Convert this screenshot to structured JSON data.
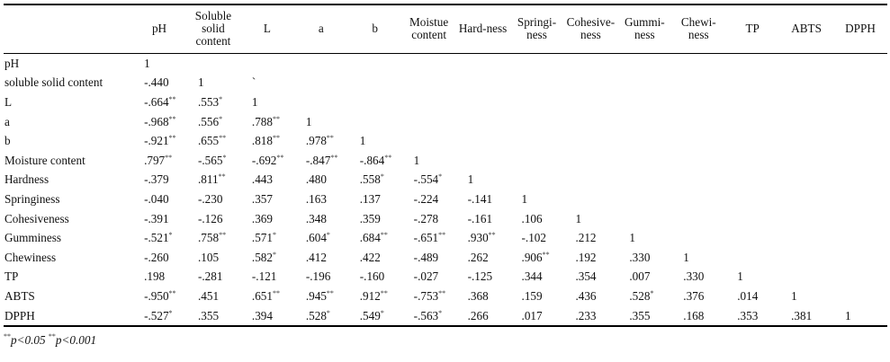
{
  "table": {
    "columns": [
      "",
      "pH",
      "Soluble solid content",
      "L",
      "a",
      "b",
      "Moistue content",
      "Hard-ness",
      "Springi-ness",
      "Cohesive-ness",
      "Gummi-ness",
      "Chewi-ness",
      "TP",
      "ABTS",
      "DPPH"
    ],
    "rows": [
      {
        "label": "pH",
        "cells": [
          "1"
        ]
      },
      {
        "label": "soluble solid content",
        "cells": [
          "-.440",
          "1",
          "`"
        ]
      },
      {
        "label": "L",
        "cells": [
          "-.664**",
          ".553*",
          "1"
        ]
      },
      {
        "label": "a",
        "cells": [
          "-.968**",
          ".556*",
          ".788**",
          "1"
        ]
      },
      {
        "label": "b",
        "cells": [
          "-.921**",
          ".655**",
          ".818**",
          ".978**",
          "1"
        ]
      },
      {
        "label": "Moisture content",
        "cells": [
          ".797**",
          "-.565*",
          "-.692**",
          "-.847**",
          "-.864**",
          "1"
        ]
      },
      {
        "label": "Hardness",
        "cells": [
          "-.379",
          ".811**",
          ".443",
          ".480",
          ".558*",
          "-.554*",
          "1"
        ]
      },
      {
        "label": "Springiness",
        "cells": [
          "-.040",
          "-.230",
          ".357",
          ".163",
          ".137",
          "-.224",
          "-.141",
          "1"
        ]
      },
      {
        "label": "Cohesiveness",
        "cells": [
          "-.391",
          "-.126",
          ".369",
          ".348",
          ".359",
          "-.278",
          "-.161",
          ".106",
          "1"
        ]
      },
      {
        "label": "Gumminess",
        "cells": [
          "-.521*",
          ".758**",
          ".571*",
          ".604*",
          ".684**",
          "-.651**",
          ".930**",
          "-.102",
          ".212",
          "1"
        ]
      },
      {
        "label": "Chewiness",
        "cells": [
          "-.260",
          ".105",
          ".582*",
          ".412",
          ".422",
          "-.489",
          ".262",
          ".906**",
          ".192",
          ".330",
          "1"
        ]
      },
      {
        "label": "TP",
        "cells": [
          ".198",
          "-.281",
          "-.121",
          "-.196",
          "-.160",
          "-.027",
          "-.125",
          ".344",
          ".354",
          ".007",
          ".330",
          "1"
        ]
      },
      {
        "label": "ABTS",
        "cells": [
          "-.950**",
          ".451",
          ".651**",
          ".945**",
          ".912**",
          "-.753**",
          ".368",
          ".159",
          ".436",
          ".528*",
          ".376",
          ".014",
          "1"
        ]
      },
      {
        "label": "DPPH",
        "cells": [
          "-.527*",
          ".355",
          ".394",
          ".528*",
          ".549*",
          "-.563*",
          ".266",
          ".017",
          ".233",
          ".355",
          ".168",
          ".353",
          ".381",
          "1"
        ]
      }
    ]
  },
  "footnote": {
    "mark1": "**",
    "text1": "p<0.05",
    "mark2": "**",
    "text2": "p<0.001"
  }
}
